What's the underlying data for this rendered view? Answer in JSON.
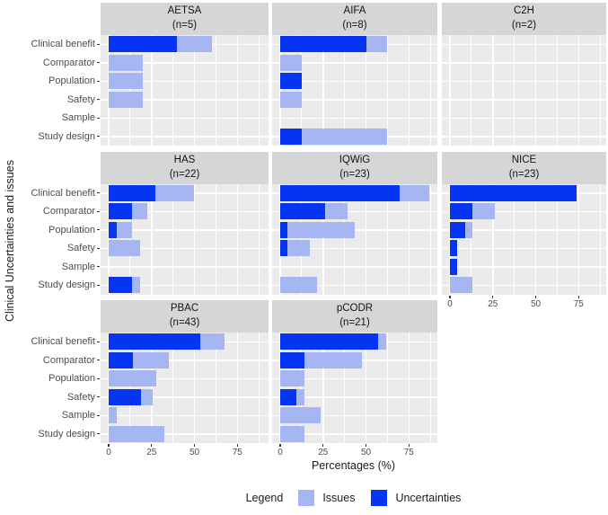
{
  "y_axis_title": "Clinical Uncertainties and issues",
  "x_axis_title": "Percentages (%)",
  "legend": {
    "title": "Legend",
    "items": [
      {
        "label": "Issues",
        "color": "#a6b6f3"
      },
      {
        "label": "Uncertainties",
        "color": "#0534f2"
      }
    ]
  },
  "colors": {
    "uncertainties": "#0534f2",
    "issues": "#a6b6f3",
    "panel_bg": "#ebebeb",
    "strip_bg": "#d6d6d6",
    "gridline": "#ffffff",
    "axis_text": "#4d4d4d"
  },
  "categories": [
    "Clinical benefit",
    "Comparator",
    "Population",
    "Safety",
    "Sample",
    "Study design"
  ],
  "x_ticks": [
    0,
    25,
    50,
    75
  ],
  "chart_data": {
    "type": "bar",
    "orientation": "horizontal",
    "stacked": true,
    "xlabel": "Percentages (%)",
    "ylabel": "Clinical Uncertainties and issues",
    "xlim": [
      0,
      90
    ],
    "grid": true,
    "legend_position": "bottom",
    "categories": [
      "Clinical benefit",
      "Comparator",
      "Population",
      "Safety",
      "Sample",
      "Study design"
    ],
    "facets": [
      {
        "name": "AETSA",
        "n_label": "(n=5)",
        "row": 0,
        "col": 0,
        "axis": false,
        "uncertainties": [
          40,
          0,
          0,
          0,
          0,
          0
        ],
        "issues": [
          20,
          20,
          20,
          20,
          0,
          0
        ]
      },
      {
        "name": "AIFA",
        "n_label": "(n=8)",
        "row": 0,
        "col": 1,
        "axis": false,
        "uncertainties": [
          50,
          0,
          12.5,
          0,
          0,
          12.5
        ],
        "issues": [
          12.5,
          12.5,
          0,
          12.5,
          0,
          50
        ]
      },
      {
        "name": "C2H",
        "n_label": "(n=2)",
        "row": 0,
        "col": 2,
        "axis": false,
        "uncertainties": [
          0,
          0,
          0,
          0,
          0,
          0
        ],
        "issues": [
          0,
          0,
          0,
          0,
          0,
          0
        ]
      },
      {
        "name": "HAS",
        "n_label": "(n=22)",
        "row": 1,
        "col": 0,
        "axis": false,
        "uncertainties": [
          27.3,
          13.6,
          4.5,
          0,
          0,
          13.6
        ],
        "issues": [
          22.7,
          9.1,
          9.1,
          18.2,
          0,
          4.5
        ]
      },
      {
        "name": "IQWiG",
        "n_label": "(n=23)",
        "row": 1,
        "col": 1,
        "axis": false,
        "uncertainties": [
          69.6,
          26.1,
          4.3,
          4.3,
          0,
          0
        ],
        "issues": [
          17.4,
          13.0,
          39.1,
          13.0,
          0,
          21.7
        ]
      },
      {
        "name": "NICE",
        "n_label": "(n=23)",
        "row": 1,
        "col": 2,
        "axis": true,
        "uncertainties": [
          73.9,
          13.0,
          8.7,
          4.3,
          4.3,
          0
        ],
        "issues": [
          0,
          13.0,
          4.3,
          0,
          0,
          13.0
        ]
      },
      {
        "name": "PBAC",
        "n_label": "(n=43)",
        "row": 2,
        "col": 0,
        "axis": true,
        "uncertainties": [
          53.5,
          14.0,
          0,
          18.6,
          0,
          0
        ],
        "issues": [
          14.0,
          20.9,
          27.9,
          7.0,
          4.7,
          32.6
        ]
      },
      {
        "name": "pCODR",
        "n_label": "(n=21)",
        "row": 2,
        "col": 1,
        "axis": true,
        "uncertainties": [
          57.1,
          14.3,
          0,
          9.5,
          0,
          0
        ],
        "issues": [
          4.8,
          33.3,
          14.3,
          4.8,
          23.8,
          14.3
        ]
      }
    ]
  }
}
